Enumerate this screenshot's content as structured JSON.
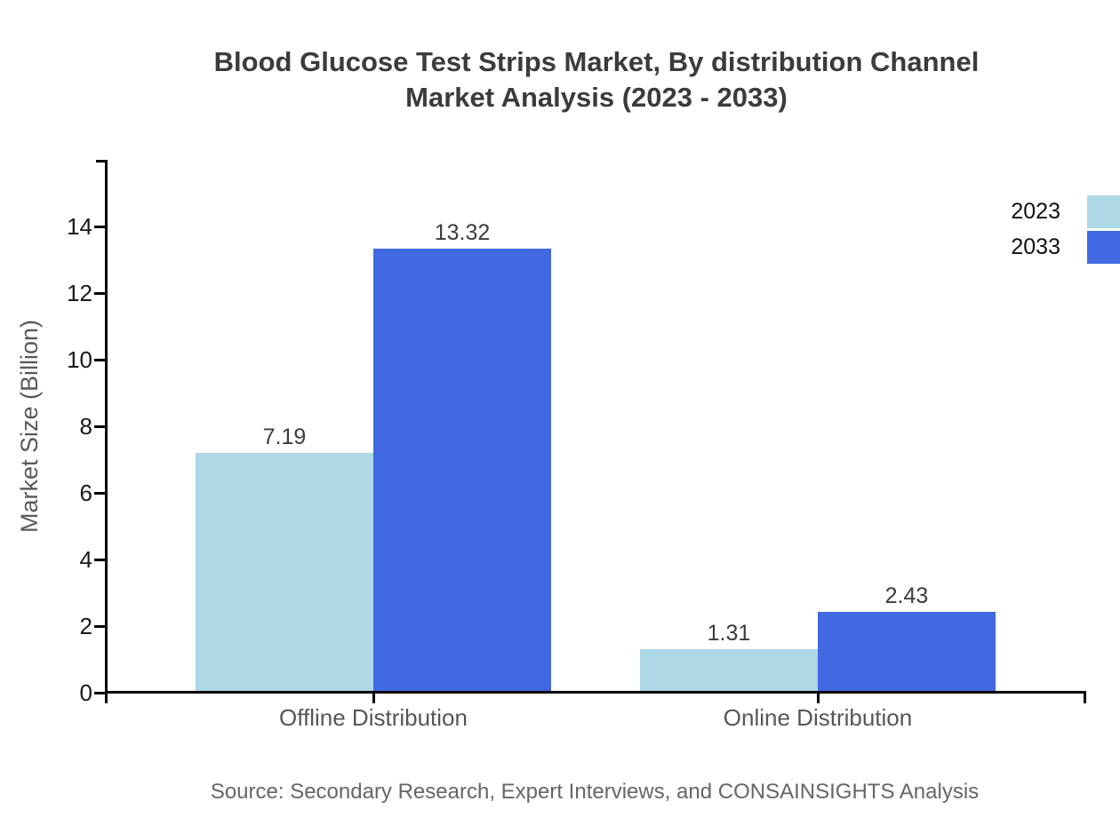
{
  "title": {
    "line1": "Blood Glucose Test Strips Market, By distribution Channel",
    "line2": "Market Analysis (2023 - 2033)"
  },
  "y_axis_label": "Market Size (Billion)",
  "source": "Source: Secondary Research, Expert Interviews, and CONSAINSIGHTS Analysis",
  "legend": [
    {
      "label": "2023",
      "color": "#ADD8E6"
    },
    {
      "label": "2033",
      "color": "#4169E1"
    }
  ],
  "chart_data": {
    "type": "bar",
    "title": "Blood Glucose Test Strips Market, By distribution Channel Market Analysis (2023 - 2033)",
    "categories": [
      "Offline Distribution",
      "Online Distribution"
    ],
    "series": [
      {
        "name": "2023",
        "color": "#ADD8E6",
        "values": [
          7.19,
          1.31
        ],
        "value_labels": [
          "7.19",
          "1.31"
        ]
      },
      {
        "name": "2033",
        "color": "#4169E1",
        "values": [
          13.32,
          2.43
        ],
        "value_labels": [
          "13.32",
          "2.43"
        ]
      }
    ],
    "xlabel": "",
    "ylabel": "Market Size (Billion)",
    "ylim": [
      0,
      16
    ],
    "yticks": [
      0,
      2,
      4,
      6,
      8,
      10,
      12,
      14
    ],
    "grid": false,
    "legend_position": "upper right",
    "source_note": "Source: Secondary Research, Expert Interviews, and CONSAINSIGHTS Analysis"
  }
}
